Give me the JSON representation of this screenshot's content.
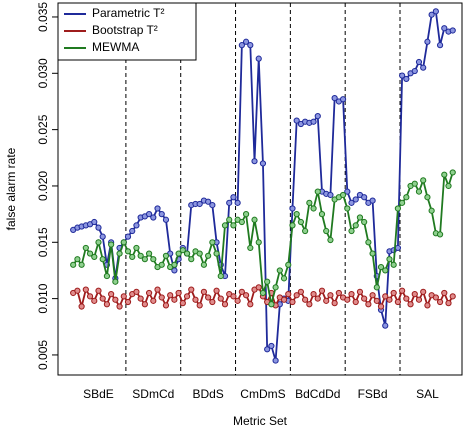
{
  "chart_data": {
    "type": "line",
    "x_label": "Metric Set",
    "y_label": "false alarm rate",
    "xlim": [
      -2.6,
      93.2
    ],
    "ylim": [
      0.00322,
      0.03624
    ],
    "xticks": [
      {
        "value": 7,
        "label": "SBdE"
      },
      {
        "value": 20,
        "label": "SDmCd"
      },
      {
        "value": 33,
        "label": "BDdS"
      },
      {
        "value": 46,
        "label": "CmDmS"
      },
      {
        "value": 59,
        "label": "BdCdDd"
      },
      {
        "value": 72,
        "label": "FSBd"
      },
      {
        "value": 85,
        "label": "SAL"
      }
    ],
    "yticks": [
      0.005,
      {
        "value": 0.01,
        "label": "0.010"
      },
      0.015,
      {
        "value": 0.02,
        "label": "0.020"
      },
      0.025,
      {
        "value": 0.03,
        "label": "0.030"
      },
      0.035
    ],
    "vlines": [
      13.5,
      26.5,
      39.5,
      52.5,
      65.5,
      78.5
    ],
    "legend": "top-left",
    "x": [
      1,
      2,
      3,
      4,
      5,
      6,
      7,
      8,
      9,
      10,
      11,
      12,
      13,
      14,
      15,
      16,
      17,
      18,
      19,
      20,
      21,
      22,
      23,
      24,
      25,
      26,
      27,
      28,
      29,
      30,
      31,
      32,
      33,
      34,
      35,
      36,
      37,
      38,
      39,
      40,
      41,
      42,
      43,
      44,
      45,
      46,
      47,
      48,
      49,
      50,
      51,
      52,
      53,
      54,
      55,
      56,
      57,
      58,
      59,
      60,
      61,
      62,
      63,
      64,
      65,
      66,
      67,
      68,
      69,
      70,
      71,
      72,
      73,
      74,
      75,
      76,
      77,
      78,
      79,
      80,
      81,
      82,
      83,
      84,
      85,
      86,
      87,
      88,
      89,
      90,
      91
    ],
    "series": [
      {
        "name": "Parametric T²",
        "color": "#1f2a9a",
        "fill": "#8c96e0",
        "values": [
          0.0161,
          0.0163,
          0.0164,
          0.0165,
          0.0166,
          0.0168,
          0.0163,
          0.0155,
          0.013,
          0.015,
          0.0118,
          0.0145,
          0.015,
          0.0155,
          0.016,
          0.0165,
          0.0172,
          0.0173,
          0.0175,
          0.0172,
          0.018,
          0.0175,
          0.017,
          0.014,
          0.0125,
          0.0135,
          0.0145,
          0.014,
          0.0183,
          0.0184,
          0.0184,
          0.0187,
          0.0186,
          0.0183,
          0.015,
          0.013,
          0.012,
          0.0185,
          0.019,
          0.0185,
          0.0325,
          0.0328,
          0.0325,
          0.0222,
          0.0313,
          0.022,
          0.0055,
          0.0058,
          0.0045,
          0.0095,
          0.01,
          0.0098,
          0.018,
          0.0258,
          0.0255,
          0.0257,
          0.0256,
          0.0257,
          0.0262,
          0.0195,
          0.0193,
          0.0192,
          0.0278,
          0.0275,
          0.0277,
          0.0195,
          0.0185,
          0.0188,
          0.0192,
          0.019,
          0.0185,
          0.0187,
          0.012,
          0.009,
          0.0076,
          0.0142,
          0.0143,
          0.0145,
          0.0298,
          0.0295,
          0.03,
          0.0302,
          0.031,
          0.0305,
          0.0328,
          0.0352,
          0.0355,
          0.0325,
          0.034,
          0.0337,
          0.0338
        ]
      },
      {
        "name": "Bootstrap T²",
        "color": "#9e1c1c",
        "fill": "#e08c8c",
        "values": [
          0.0105,
          0.0107,
          0.0093,
          0.0108,
          0.0102,
          0.0098,
          0.0107,
          0.01,
          0.0095,
          0.0104,
          0.0099,
          0.0093,
          0.0102,
          0.0097,
          0.0104,
          0.0106,
          0.01,
          0.0095,
          0.0105,
          0.0098,
          0.0108,
          0.0101,
          0.0094,
          0.0103,
          0.0099,
          0.0105,
          0.0096,
          0.0102,
          0.0108,
          0.0099,
          0.0094,
          0.0106,
          0.0101,
          0.0097,
          0.0107,
          0.01,
          0.0095,
          0.0104,
          0.0102,
          0.0098,
          0.0106,
          0.0103,
          0.0095,
          0.0108,
          0.011,
          0.0102,
          0.0097,
          0.0105,
          0.0094,
          0.0101,
          0.0099,
          0.0104,
          0.0097,
          0.0103,
          0.0106,
          0.0099,
          0.0095,
          0.0104,
          0.01,
          0.0107,
          0.0098,
          0.0103,
          0.0096,
          0.0105,
          0.0101,
          0.0099,
          0.0104,
          0.0097,
          0.0106,
          0.01,
          0.0095,
          0.0103,
          0.0098,
          0.0093,
          0.0102,
          0.0099,
          0.0105,
          0.0097,
          0.0107,
          0.01,
          0.0095,
          0.0104,
          0.0099,
          0.0106,
          0.0094,
          0.0103,
          0.0101,
          0.0097,
          0.0105,
          0.0096,
          0.0102
        ]
      },
      {
        "name": "MEWMA",
        "color": "#207a20",
        "fill": "#8fd08f",
        "values": [
          0.013,
          0.0135,
          0.013,
          0.0145,
          0.014,
          0.0137,
          0.015,
          0.0135,
          0.012,
          0.0148,
          0.0115,
          0.014,
          0.015,
          0.0142,
          0.0137,
          0.0145,
          0.0138,
          0.0135,
          0.014,
          0.0135,
          0.0128,
          0.013,
          0.0138,
          0.0128,
          0.013,
          0.014,
          0.0143,
          0.014,
          0.0135,
          0.0142,
          0.014,
          0.013,
          0.0138,
          0.015,
          0.014,
          0.012,
          0.0165,
          0.017,
          0.0165,
          0.017,
          0.0168,
          0.0175,
          0.0145,
          0.017,
          0.015,
          0.0105,
          0.0115,
          0.0095,
          0.011,
          0.0125,
          0.0118,
          0.013,
          0.0165,
          0.0175,
          0.0168,
          0.016,
          0.0185,
          0.018,
          0.0195,
          0.0175,
          0.016,
          0.0152,
          0.0188,
          0.019,
          0.0192,
          0.018,
          0.016,
          0.0165,
          0.0172,
          0.0168,
          0.015,
          0.014,
          0.011,
          0.0128,
          0.0125,
          0.0135,
          0.013,
          0.018,
          0.0185,
          0.019,
          0.02,
          0.0202,
          0.0195,
          0.0205,
          0.019,
          0.0178,
          0.0158,
          0.0157,
          0.021,
          0.02,
          0.0212
        ]
      }
    ]
  }
}
